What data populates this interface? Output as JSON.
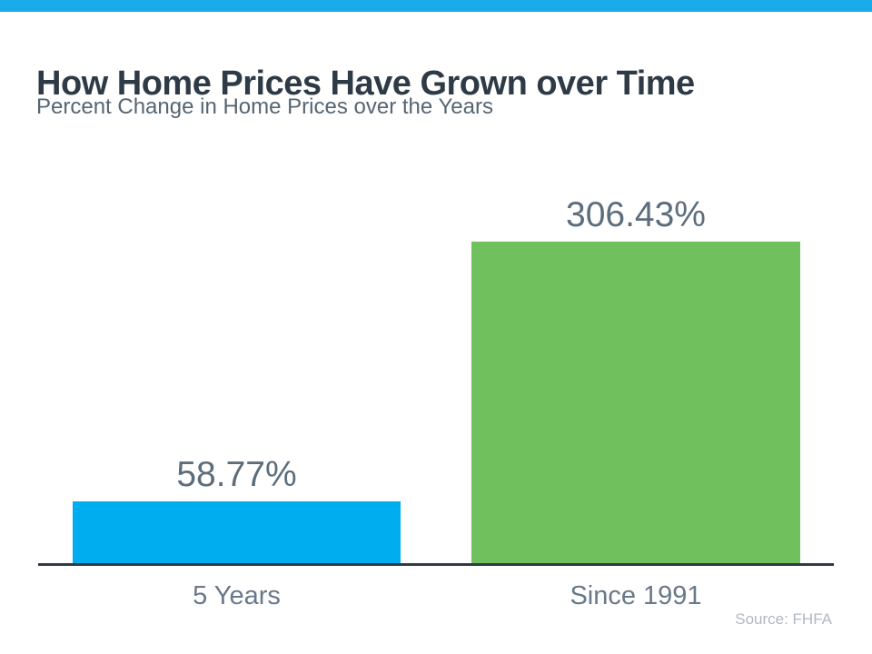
{
  "header": {
    "title": "How Home Prices Have Grown over Time",
    "subtitle": "Percent Change in Home Prices over the Years"
  },
  "source_note": "Source: FHFA",
  "colors": {
    "top_strip": "#1BAAEA",
    "axis_line": "#2F3A44",
    "title_text": "#2E3A45",
    "subtitle_text": "#566572",
    "value_text": "#5C6D7C",
    "category_text": "#67798A",
    "source_text": "#AEB9C3",
    "bar_blue": "#00AEEF",
    "bar_green": "#70C15E"
  },
  "chart_data": {
    "type": "bar",
    "title": "How Home Prices Have Grown over Time",
    "subtitle": "Percent Change in Home Prices over the Years",
    "categories": [
      "5 Years",
      "Since 1991"
    ],
    "values": [
      58.77,
      306.43
    ],
    "value_labels": [
      "58.77%",
      "306.43%"
    ],
    "bar_colors": [
      "#00AEEF",
      "#70C15E"
    ],
    "xlabel": "",
    "ylabel": "",
    "ylim": [
      0,
      320
    ],
    "grid": false,
    "legend": false,
    "annotations": [
      "Source: FHFA"
    ]
  }
}
